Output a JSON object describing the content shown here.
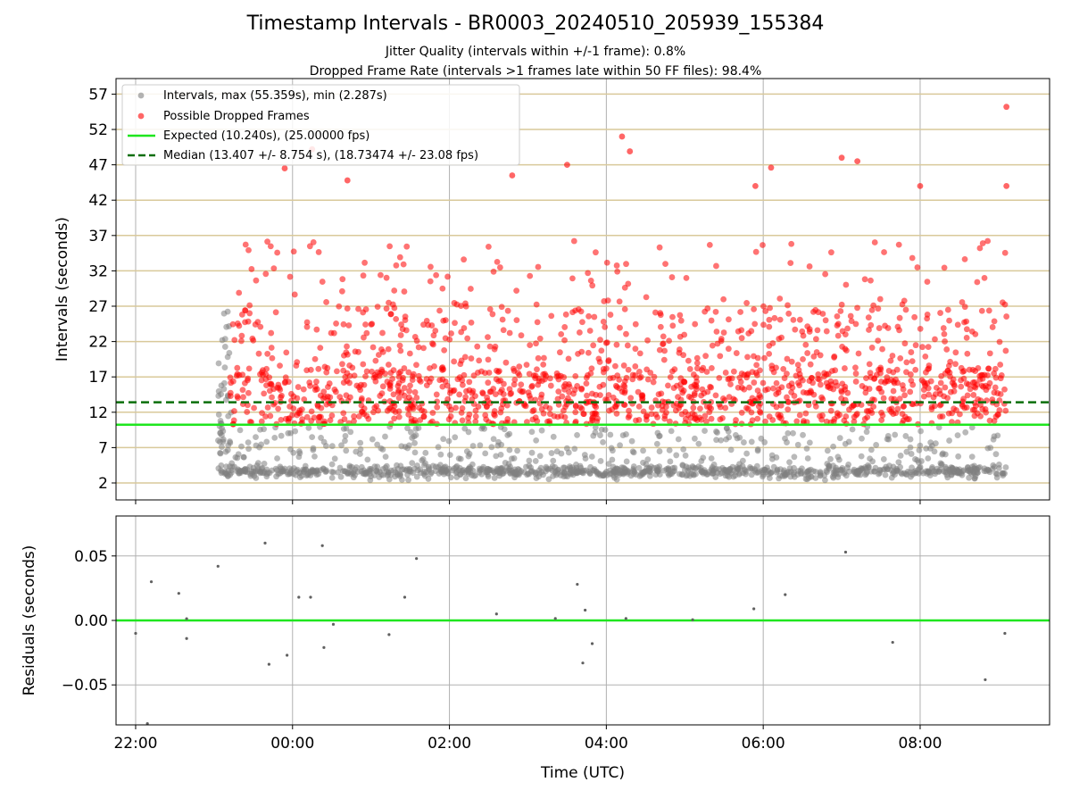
{
  "header": {
    "title": "Timestamp Intervals - BR0003_20240510_205939_155384",
    "subtitle_1": "Jitter Quality (intervals within +/-1 frame): 0.8%",
    "subtitle_2": "Dropped Frame Rate (intervals >1 frames late within 50 FF files): 98.4%"
  },
  "colors": {
    "interval_points": "#808080",
    "dropped_points": "#ff0000",
    "expected_line": "#1ee61e",
    "median_line": "#0a6e0a",
    "hline_color": "#d9c99a",
    "grid_color": "#b0b0b0"
  },
  "chart_data": [
    {
      "type": "scatter",
      "xlabel": "",
      "ylabel": "Intervals (seconds)",
      "x_unit": "hours relative to 00:00 UTC (same night)",
      "xlim": [
        -2.25,
        9.65
      ],
      "ylim": [
        -0.4,
        59.2
      ],
      "yticks": [
        2,
        7,
        12,
        17,
        22,
        27,
        32,
        37,
        42,
        47,
        52,
        57
      ],
      "horizontal_lines": [
        2,
        7,
        12,
        17,
        22,
        27,
        32,
        37,
        42,
        47,
        52,
        57
      ],
      "grid": true,
      "legend_position": "top-left",
      "legend": [
        "Intervals, max (55.359s), min (2.287s)",
        "Possible Dropped Frames",
        "Expected (10.240s), (25.00000 fps)",
        "Median (13.407 +/- 8.754 s), (18.73474 +/- 23.08 fps)"
      ],
      "series": [
        {
          "name": "Intervals, max (55.359s), min (2.287s)",
          "kind": "points",
          "x_range": [
            -0.95,
            9.1
          ],
          "max": 55.359,
          "min": 2.287
        },
        {
          "name": "Possible Dropped Frames",
          "kind": "points",
          "x_range": [
            -0.95,
            9.1
          ]
        },
        {
          "name": "Expected (10.240s), (25.00000 fps)",
          "kind": "hline",
          "y": 10.24
        },
        {
          "name": "Median (13.407 +/- 8.754 s), (18.73474 +/- 23.08 fps)",
          "kind": "hline-dashed",
          "y": 13.407
        }
      ],
      "outliers": [
        {
          "x": 9.1,
          "y": 55.2
        },
        {
          "x": 4.2,
          "y": 51.0
        },
        {
          "x": 4.3,
          "y": 48.9
        },
        {
          "x": 0.25,
          "y": 49.2
        },
        {
          "x": -0.1,
          "y": 46.5
        },
        {
          "x": 7.0,
          "y": 48.0
        },
        {
          "x": 7.2,
          "y": 47.5
        },
        {
          "x": 3.5,
          "y": 47.0
        },
        {
          "x": 6.1,
          "y": 46.6
        },
        {
          "x": 2.8,
          "y": 45.5
        },
        {
          "x": 0.7,
          "y": 44.8
        },
        {
          "x": 5.9,
          "y": 44.0
        },
        {
          "x": 8.0,
          "y": 44.0
        },
        {
          "x": 9.1,
          "y": 44.0
        }
      ]
    },
    {
      "type": "scatter",
      "xlabel": "Time (UTC)",
      "ylabel": "Residuals (seconds)",
      "xlim": [
        -2.25,
        9.65
      ],
      "ylim": [
        -0.081,
        0.081
      ],
      "xticks": [
        "22:00",
        "00:00",
        "02:00",
        "04:00",
        "06:00",
        "08:00"
      ],
      "xtick_values": [
        -2,
        0,
        2,
        4,
        6,
        8
      ],
      "yticks": [
        "0.05",
        "0.00",
        "−0.05"
      ],
      "ytick_values": [
        0.05,
        0.0,
        -0.05
      ],
      "grid": true,
      "zero_line": 0.0,
      "points": [
        {
          "x": -1.35,
          "y": 0.0013
        },
        {
          "x": -2.0,
          "y": -0.01
        },
        {
          "x": -1.8,
          "y": 0.03
        },
        {
          "x": -1.45,
          "y": 0.021
        },
        {
          "x": -1.35,
          "y": -0.014
        },
        {
          "x": -0.95,
          "y": 0.042
        },
        {
          "x": -0.35,
          "y": 0.06
        },
        {
          "x": -0.3,
          "y": -0.034
        },
        {
          "x": -0.07,
          "y": -0.027
        },
        {
          "x": 0.08,
          "y": 0.018
        },
        {
          "x": 0.23,
          "y": 0.018
        },
        {
          "x": 0.38,
          "y": 0.058
        },
        {
          "x": 0.4,
          "y": -0.021
        },
        {
          "x": 0.52,
          "y": -0.003
        },
        {
          "x": 1.43,
          "y": 0.018
        },
        {
          "x": 1.23,
          "y": -0.011
        },
        {
          "x": 1.58,
          "y": 0.048
        },
        {
          "x": 2.6,
          "y": 0.005
        },
        {
          "x": 3.35,
          "y": 0.0015
        },
        {
          "x": 3.63,
          "y": 0.028
        },
        {
          "x": 3.7,
          "y": -0.033
        },
        {
          "x": 3.73,
          "y": 0.008
        },
        {
          "x": 3.82,
          "y": -0.018
        },
        {
          "x": 4.25,
          "y": 0.0015
        },
        {
          "x": 5.1,
          "y": 0.0005
        },
        {
          "x": 5.88,
          "y": 0.009
        },
        {
          "x": 6.28,
          "y": 0.02
        },
        {
          "x": 7.05,
          "y": 0.053
        },
        {
          "x": 7.65,
          "y": -0.017
        },
        {
          "x": 8.83,
          "y": -0.046
        },
        {
          "x": 9.08,
          "y": -0.01
        },
        {
          "x": -1.85,
          "y": -0.08
        }
      ]
    }
  ]
}
